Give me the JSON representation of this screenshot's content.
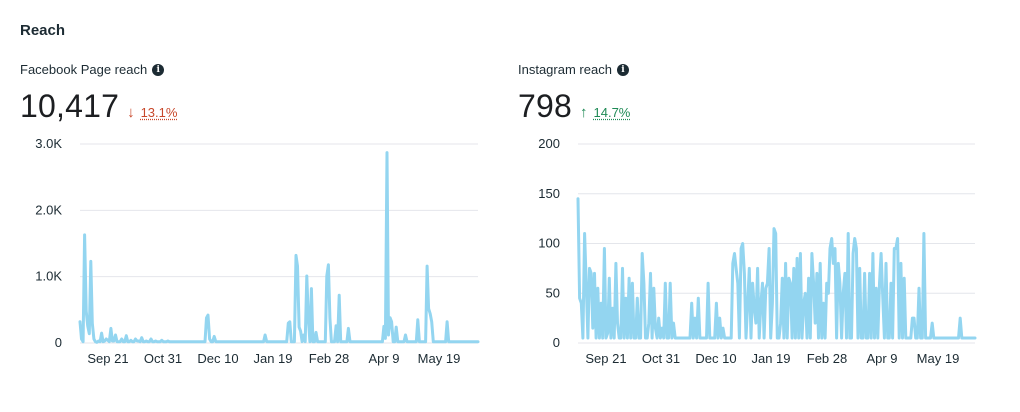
{
  "section": {
    "title": "Reach"
  },
  "facebook": {
    "label": "Facebook Page reach",
    "info_icon": "info-icon",
    "value": "10,417",
    "trend": {
      "direction": "down",
      "arrow": "↓",
      "percent": "13.1%",
      "color": "#c8472a"
    }
  },
  "instagram": {
    "label": "Instagram reach",
    "info_icon": "info-icon",
    "value": "798",
    "trend": {
      "direction": "up",
      "arrow": "↑",
      "percent": "14.7%",
      "color": "#1e8a55"
    }
  },
  "colors": {
    "line": "#93d5f0",
    "grid": "#e4e6eb",
    "text": "#1c2b33"
  },
  "chart_data": [
    {
      "type": "line",
      "ylim": [
        0,
        3000
      ],
      "yticks": [
        0,
        1000,
        2000,
        3000
      ],
      "ytick_labels": [
        "0",
        "1.0K",
        "2.0K",
        "3.0K"
      ],
      "xticks": [
        "Sep 21",
        "Oct 31",
        "Dec 10",
        "Jan 19",
        "Feb 28",
        "Apr 9",
        "May 19"
      ],
      "grid": true,
      "series": [
        {
          "values": [
            320,
            60,
            20,
            1630,
            480,
            260,
            140,
            1230,
            300,
            60,
            20,
            10,
            30,
            20,
            150,
            20,
            30,
            60,
            40,
            20,
            220,
            30,
            30,
            120,
            20,
            20,
            20,
            60,
            20,
            20,
            110,
            20,
            20,
            40,
            20,
            20,
            60,
            30,
            30,
            20,
            80,
            20,
            20,
            30,
            20,
            20,
            60,
            20,
            20,
            30,
            20,
            20,
            20,
            40,
            20,
            20,
            20,
            30,
            20,
            20,
            20,
            20,
            20,
            20,
            20,
            20,
            20,
            20,
            20,
            20,
            20,
            20,
            20,
            20,
            20,
            20,
            20,
            20,
            20,
            20,
            20,
            20,
            380,
            420,
            60,
            20,
            20,
            100,
            20,
            20,
            20,
            20,
            20,
            20,
            20,
            20,
            20,
            20,
            20,
            20,
            20,
            20,
            20,
            20,
            20,
            20,
            20,
            20,
            20,
            20,
            20,
            20,
            20,
            20,
            20,
            20,
            20,
            20,
            20,
            20,
            120,
            20,
            20,
            20,
            20,
            20,
            20,
            20,
            20,
            20,
            20,
            20,
            20,
            20,
            20,
            300,
            320,
            20,
            20,
            20,
            1320,
            1160,
            240,
            180,
            20,
            120,
            20,
            1010,
            380,
            20,
            820,
            20,
            20,
            160,
            20,
            20,
            20,
            20,
            20,
            20,
            1010,
            1180,
            380,
            20,
            20,
            20,
            260,
            20,
            720,
            20,
            20,
            20,
            20,
            20,
            220,
            20,
            20,
            20,
            20,
            20,
            20,
            20,
            20,
            20,
            20,
            20,
            20,
            20,
            20,
            20,
            20,
            20,
            20,
            20,
            20,
            20,
            20,
            250,
            70,
            2870,
            120,
            380,
            320,
            20,
            20,
            240,
            20,
            20,
            20,
            20,
            20,
            120,
            20,
            20,
            20,
            20,
            20,
            20,
            20,
            350,
            20,
            20,
            20,
            20,
            20,
            1160,
            520,
            440,
            320,
            20,
            20,
            20,
            20,
            20,
            20,
            20,
            20,
            20,
            320,
            20,
            20,
            20,
            20,
            20,
            20,
            20,
            20,
            20,
            20,
            20,
            20,
            20,
            20,
            20,
            20,
            20,
            20,
            20,
            20
          ]
        }
      ]
    },
    {
      "type": "line",
      "ylim": [
        0,
        200
      ],
      "yticks": [
        0,
        50,
        100,
        150,
        200
      ],
      "ytick_labels": [
        "0",
        "50",
        "100",
        "150",
        "200"
      ],
      "xticks": [
        "Sep 21",
        "Oct 31",
        "Dec 10",
        "Jan 19",
        "Feb 28",
        "Apr 9",
        "May 19"
      ],
      "grid": true,
      "series": [
        {
          "values": [
            145,
            45,
            40,
            5,
            110,
            60,
            5,
            75,
            70,
            15,
            70,
            5,
            55,
            5,
            40,
            5,
            95,
            5,
            10,
            65,
            5,
            35,
            5,
            80,
            20,
            5,
            5,
            75,
            5,
            45,
            5,
            65,
            5,
            60,
            5,
            5,
            45,
            5,
            5,
            90,
            60,
            5,
            5,
            20,
            70,
            5,
            55,
            15,
            5,
            25,
            5,
            15,
            5,
            60,
            5,
            5,
            60,
            5,
            20,
            5,
            5,
            5,
            5,
            5,
            5,
            5,
            5,
            5,
            5,
            40,
            5,
            25,
            5,
            45,
            5,
            5,
            5,
            5,
            5,
            60,
            5,
            5,
            5,
            5,
            40,
            5,
            25,
            5,
            15,
            5,
            5,
            5,
            5,
            5,
            80,
            90,
            75,
            60,
            5,
            95,
            100,
            70,
            5,
            40,
            75,
            5,
            60,
            35,
            20,
            75,
            5,
            40,
            60,
            5,
            55,
            60,
            95,
            5,
            40,
            115,
            110,
            5,
            5,
            20,
            65,
            5,
            80,
            5,
            65,
            60,
            5,
            75,
            5,
            85,
            5,
            90,
            5,
            40,
            50,
            5,
            65,
            5,
            90,
            60,
            20,
            70,
            5,
            80,
            5,
            40,
            5,
            60,
            50,
            95,
            105,
            80,
            95,
            5,
            80,
            60,
            5,
            50,
            70,
            5,
            110,
            5,
            5,
            90,
            105,
            95,
            5,
            75,
            5,
            5,
            70,
            5,
            5,
            70,
            5,
            90,
            5,
            55,
            5,
            60,
            90,
            45,
            5,
            80,
            5,
            5,
            60,
            5,
            95,
            95,
            105,
            5,
            80,
            5,
            65,
            5,
            5,
            5,
            5,
            25,
            25,
            5,
            5,
            55,
            5,
            5,
            110,
            5,
            5,
            5,
            5,
            20,
            5,
            5,
            5,
            5,
            5,
            5,
            5,
            5,
            5,
            5,
            5,
            5,
            5,
            5,
            5,
            5,
            25,
            5,
            5,
            5,
            5,
            5,
            5,
            5,
            5,
            5
          ]
        }
      ]
    }
  ]
}
